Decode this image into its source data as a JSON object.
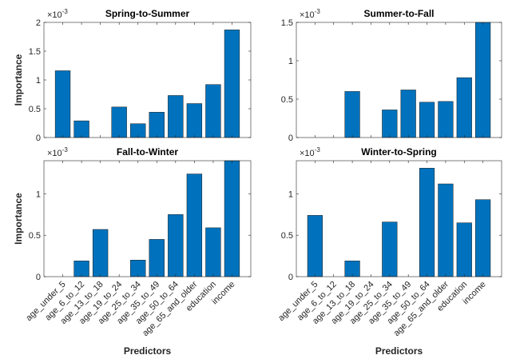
{
  "figure": {
    "xlabel": "Predictors",
    "ylabel": "Importance",
    "exponent_base": "×10",
    "exponent_power": "-3"
  },
  "chart_data": [
    {
      "type": "bar",
      "title": "Spring-to-Summer",
      "ylabel": "Importance",
      "xlabel": "",
      "ylim": [
        0,
        2
      ],
      "yticks": [
        0,
        0.5,
        1,
        1.5,
        2
      ],
      "ytick_labels": [
        "0",
        "0.5",
        "1",
        "1.5",
        "2"
      ],
      "exponent": "×10-3",
      "bar_color": "#0072BD",
      "categories": [
        "age_under_5",
        "age_6_to_12",
        "age_13_to_18",
        "age_19_to_24",
        "age_25_to_34",
        "age_35_to_49",
        "age_50_to_64",
        "age_65_and_older",
        "education",
        "income"
      ],
      "values": [
        1.16,
        0.29,
        0,
        0.53,
        0.24,
        0.44,
        0.73,
        0.59,
        0.92,
        1.87
      ]
    },
    {
      "type": "bar",
      "title": "Summer-to-Fall",
      "ylabel": "",
      "xlabel": "",
      "ylim": [
        0,
        1.5
      ],
      "yticks": [
        0,
        0.5,
        1,
        1.5
      ],
      "ytick_labels": [
        "0",
        "0.5",
        "1",
        "1.5"
      ],
      "exponent": "×10-3",
      "bar_color": "#0072BD",
      "categories": [
        "age_under_5",
        "age_6_to_12",
        "age_13_to_18",
        "age_19_to_24",
        "age_25_to_34",
        "age_35_to_49",
        "age_50_to_64",
        "age_65_and_older",
        "education",
        "income"
      ],
      "values": [
        0,
        0,
        0.6,
        0,
        0.36,
        0.62,
        0.46,
        0.47,
        0.78,
        1.52
      ]
    },
    {
      "type": "bar",
      "title": "Fall-to-Winter",
      "ylabel": "Importance",
      "xlabel": "Predictors",
      "ylim": [
        0,
        1.4
      ],
      "yticks": [
        0,
        0.5,
        1
      ],
      "ytick_labels": [
        "0",
        "0.5",
        "1"
      ],
      "exponent": "×10-3",
      "bar_color": "#0072BD",
      "categories": [
        "age_under_5",
        "age_6_to_12",
        "age_13_to_18",
        "age_19_to_24",
        "age_25_to_34",
        "age_35_to_49",
        "age_50_to_64",
        "age_65_and_older",
        "education",
        "income"
      ],
      "values": [
        0,
        0.19,
        0.57,
        0,
        0.2,
        0.45,
        0.75,
        1.24,
        0.59,
        1.42
      ]
    },
    {
      "type": "bar",
      "title": "Winter-to-Spring",
      "ylabel": "",
      "xlabel": "Predictors",
      "ylim": [
        0,
        1.4
      ],
      "yticks": [
        0,
        0.5,
        1
      ],
      "ytick_labels": [
        "0",
        "0.5",
        "1"
      ],
      "exponent": "×10-3",
      "bar_color": "#0072BD",
      "categories": [
        "age_under_5",
        "age_6_to_12",
        "age_13_to_18",
        "age_19_to_24",
        "age_25_to_34",
        "age_35_to_49",
        "age_50_to_64",
        "age_65_and_older",
        "education",
        "income"
      ],
      "values": [
        0.74,
        0,
        0.19,
        0,
        0.66,
        0,
        1.31,
        1.12,
        0.65,
        0.93
      ]
    }
  ]
}
